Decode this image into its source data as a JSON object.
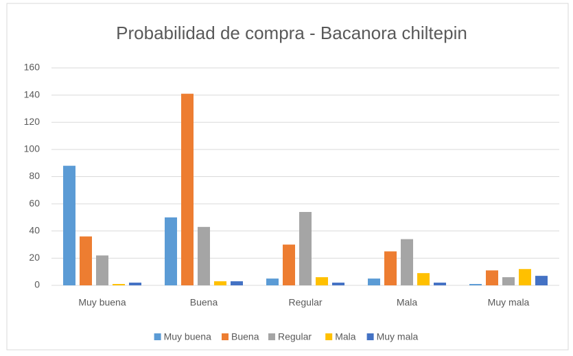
{
  "chart_data": {
    "type": "bar",
    "title": "Probabilidad de compra - Bacanora chiltepin",
    "categories": [
      "Muy buena",
      "Buena",
      "Regular",
      "Mala",
      "Muy mala"
    ],
    "series": [
      {
        "name": "Muy buena",
        "color": "#5b9bd5",
        "values": [
          88,
          50,
          5,
          5,
          1
        ]
      },
      {
        "name": "Buena",
        "color": "#ed7d31",
        "values": [
          36,
          141,
          30,
          25,
          11
        ]
      },
      {
        "name": "Regular",
        "color": "#a5a5a5",
        "values": [
          22,
          43,
          54,
          34,
          6
        ]
      },
      {
        "name": "Mala",
        "color": "#ffc000",
        "values": [
          1,
          3,
          6,
          9,
          12
        ]
      },
      {
        "name": "Muy mala",
        "color": "#4472c4",
        "values": [
          2,
          3,
          2,
          2,
          7
        ]
      }
    ],
    "ylim": [
      0,
      160
    ],
    "yticks": [
      0,
      20,
      40,
      60,
      80,
      100,
      120,
      140,
      160
    ],
    "grid": true,
    "legend": "bottom"
  }
}
